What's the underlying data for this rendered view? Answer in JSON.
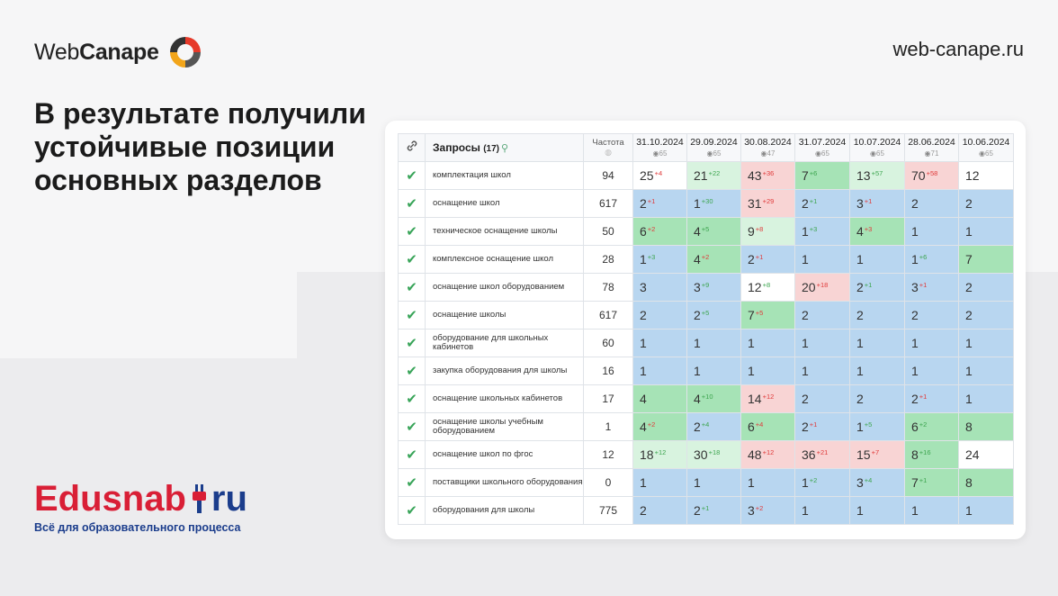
{
  "brand": {
    "name_light": "Web",
    "name_bold": "Canape",
    "site": "web-canape.ru"
  },
  "headline": "В результате получили устойчивые позиции основных разделов",
  "client": {
    "name_red": "Edusnab",
    "name_blue": "ru",
    "tagline": "Всё для образовательного процесса"
  },
  "table": {
    "header": {
      "queries_label": "Запросы",
      "queries_count": "(17)",
      "freq_label": "Частота",
      "dates": [
        {
          "date": "31.10.2024",
          "coverage": "65"
        },
        {
          "date": "29.09.2024",
          "coverage": "65"
        },
        {
          "date": "30.08.2024",
          "coverage": "47"
        },
        {
          "date": "31.07.2024",
          "coverage": "65"
        },
        {
          "date": "10.07.2024",
          "coverage": "65"
        },
        {
          "date": "28.06.2024",
          "coverage": "71"
        },
        {
          "date": "10.06.2024",
          "coverage": "65"
        }
      ]
    },
    "rows": [
      {
        "query": "комплектация школ",
        "freq": "94",
        "cells": [
          {
            "v": "25",
            "d": "+4",
            "dir": "dn",
            "c": "c-white"
          },
          {
            "v": "21",
            "d": "+22",
            "dir": "up",
            "c": "c-lgreen"
          },
          {
            "v": "43",
            "d": "+36",
            "dir": "dn",
            "c": "c-pink"
          },
          {
            "v": "7",
            "d": "+6",
            "dir": "up",
            "c": "c-green"
          },
          {
            "v": "13",
            "d": "+57",
            "dir": "up",
            "c": "c-lgreen"
          },
          {
            "v": "70",
            "d": "+58",
            "dir": "dn",
            "c": "c-pink"
          },
          {
            "v": "12",
            "d": "",
            "dir": "",
            "c": "c-white"
          }
        ]
      },
      {
        "query": "оснащение школ",
        "freq": "617",
        "cells": [
          {
            "v": "2",
            "d": "+1",
            "dir": "dn",
            "c": "c-blue"
          },
          {
            "v": "1",
            "d": "+30",
            "dir": "up",
            "c": "c-blue"
          },
          {
            "v": "31",
            "d": "+29",
            "dir": "dn",
            "c": "c-pink"
          },
          {
            "v": "2",
            "d": "+1",
            "dir": "up",
            "c": "c-blue"
          },
          {
            "v": "3",
            "d": "+1",
            "dir": "dn",
            "c": "c-blue"
          },
          {
            "v": "2",
            "d": "",
            "dir": "",
            "c": "c-blue"
          },
          {
            "v": "2",
            "d": "",
            "dir": "",
            "c": "c-blue"
          }
        ]
      },
      {
        "query": "техническое оснащение школы",
        "freq": "50",
        "cells": [
          {
            "v": "6",
            "d": "+2",
            "dir": "dn",
            "c": "c-green"
          },
          {
            "v": "4",
            "d": "+5",
            "dir": "up",
            "c": "c-green"
          },
          {
            "v": "9",
            "d": "+8",
            "dir": "dn",
            "c": "c-lgreen"
          },
          {
            "v": "1",
            "d": "+3",
            "dir": "up",
            "c": "c-blue"
          },
          {
            "v": "4",
            "d": "+3",
            "dir": "dn",
            "c": "c-green"
          },
          {
            "v": "1",
            "d": "",
            "dir": "",
            "c": "c-blue"
          },
          {
            "v": "1",
            "d": "",
            "dir": "",
            "c": "c-blue"
          }
        ]
      },
      {
        "query": "комплексное оснащение школ",
        "freq": "28",
        "cells": [
          {
            "v": "1",
            "d": "+3",
            "dir": "up",
            "c": "c-blue"
          },
          {
            "v": "4",
            "d": "+2",
            "dir": "dn",
            "c": "c-green"
          },
          {
            "v": "2",
            "d": "+1",
            "dir": "dn",
            "c": "c-blue"
          },
          {
            "v": "1",
            "d": "",
            "dir": "",
            "c": "c-blue"
          },
          {
            "v": "1",
            "d": "",
            "dir": "",
            "c": "c-blue"
          },
          {
            "v": "1",
            "d": "+6",
            "dir": "up",
            "c": "c-blue"
          },
          {
            "v": "7",
            "d": "",
            "dir": "",
            "c": "c-green"
          }
        ]
      },
      {
        "query": "оснащение школ оборудованием",
        "freq": "78",
        "cells": [
          {
            "v": "3",
            "d": "",
            "dir": "",
            "c": "c-blue"
          },
          {
            "v": "3",
            "d": "+9",
            "dir": "up",
            "c": "c-blue"
          },
          {
            "v": "12",
            "d": "+8",
            "dir": "up",
            "c": "c-white"
          },
          {
            "v": "20",
            "d": "+18",
            "dir": "dn",
            "c": "c-pink"
          },
          {
            "v": "2",
            "d": "+1",
            "dir": "up",
            "c": "c-blue"
          },
          {
            "v": "3",
            "d": "+1",
            "dir": "dn",
            "c": "c-blue"
          },
          {
            "v": "2",
            "d": "",
            "dir": "",
            "c": "c-blue"
          }
        ]
      },
      {
        "query": "оснащение школы",
        "freq": "617",
        "cells": [
          {
            "v": "2",
            "d": "",
            "dir": "",
            "c": "c-blue"
          },
          {
            "v": "2",
            "d": "+5",
            "dir": "up",
            "c": "c-blue"
          },
          {
            "v": "7",
            "d": "+5",
            "dir": "dn",
            "c": "c-green"
          },
          {
            "v": "2",
            "d": "",
            "dir": "",
            "c": "c-blue"
          },
          {
            "v": "2",
            "d": "",
            "dir": "",
            "c": "c-blue"
          },
          {
            "v": "2",
            "d": "",
            "dir": "",
            "c": "c-blue"
          },
          {
            "v": "2",
            "d": "",
            "dir": "",
            "c": "c-blue"
          }
        ]
      },
      {
        "query": "оборудование для школьных кабинетов",
        "freq": "60",
        "cells": [
          {
            "v": "1",
            "d": "",
            "dir": "",
            "c": "c-blue"
          },
          {
            "v": "1",
            "d": "",
            "dir": "",
            "c": "c-blue"
          },
          {
            "v": "1",
            "d": "",
            "dir": "",
            "c": "c-blue"
          },
          {
            "v": "1",
            "d": "",
            "dir": "",
            "c": "c-blue"
          },
          {
            "v": "1",
            "d": "",
            "dir": "",
            "c": "c-blue"
          },
          {
            "v": "1",
            "d": "",
            "dir": "",
            "c": "c-blue"
          },
          {
            "v": "1",
            "d": "",
            "dir": "",
            "c": "c-blue"
          }
        ]
      },
      {
        "query": "закупка оборудования для школы",
        "freq": "16",
        "cells": [
          {
            "v": "1",
            "d": "",
            "dir": "",
            "c": "c-blue"
          },
          {
            "v": "1",
            "d": "",
            "dir": "",
            "c": "c-blue"
          },
          {
            "v": "1",
            "d": "",
            "dir": "",
            "c": "c-blue"
          },
          {
            "v": "1",
            "d": "",
            "dir": "",
            "c": "c-blue"
          },
          {
            "v": "1",
            "d": "",
            "dir": "",
            "c": "c-blue"
          },
          {
            "v": "1",
            "d": "",
            "dir": "",
            "c": "c-blue"
          },
          {
            "v": "1",
            "d": "",
            "dir": "",
            "c": "c-blue"
          }
        ]
      },
      {
        "query": "оснащение школьных кабинетов",
        "freq": "17",
        "cells": [
          {
            "v": "4",
            "d": "",
            "dir": "",
            "c": "c-green"
          },
          {
            "v": "4",
            "d": "+10",
            "dir": "up",
            "c": "c-green"
          },
          {
            "v": "14",
            "d": "+12",
            "dir": "dn",
            "c": "c-pink"
          },
          {
            "v": "2",
            "d": "",
            "dir": "",
            "c": "c-blue"
          },
          {
            "v": "2",
            "d": "",
            "dir": "",
            "c": "c-blue"
          },
          {
            "v": "2",
            "d": "+1",
            "dir": "dn",
            "c": "c-blue"
          },
          {
            "v": "1",
            "d": "",
            "dir": "",
            "c": "c-blue"
          }
        ]
      },
      {
        "query": "оснащение школы учебным оборудованием",
        "freq": "1",
        "cells": [
          {
            "v": "4",
            "d": "+2",
            "dir": "dn",
            "c": "c-green"
          },
          {
            "v": "2",
            "d": "+4",
            "dir": "up",
            "c": "c-blue"
          },
          {
            "v": "6",
            "d": "+4",
            "dir": "dn",
            "c": "c-green"
          },
          {
            "v": "2",
            "d": "+1",
            "dir": "dn",
            "c": "c-blue"
          },
          {
            "v": "1",
            "d": "+5",
            "dir": "up",
            "c": "c-blue"
          },
          {
            "v": "6",
            "d": "+2",
            "dir": "up",
            "c": "c-green"
          },
          {
            "v": "8",
            "d": "",
            "dir": "",
            "c": "c-green"
          }
        ]
      },
      {
        "query": "оснащение школ по фгос",
        "freq": "12",
        "cells": [
          {
            "v": "18",
            "d": "+12",
            "dir": "up",
            "c": "c-lgreen"
          },
          {
            "v": "30",
            "d": "+18",
            "dir": "up",
            "c": "c-lgreen"
          },
          {
            "v": "48",
            "d": "+12",
            "dir": "dn",
            "c": "c-pink"
          },
          {
            "v": "36",
            "d": "+21",
            "dir": "dn",
            "c": "c-pink"
          },
          {
            "v": "15",
            "d": "+7",
            "dir": "dn",
            "c": "c-pink"
          },
          {
            "v": "8",
            "d": "+16",
            "dir": "up",
            "c": "c-green"
          },
          {
            "v": "24",
            "d": "",
            "dir": "",
            "c": "c-white"
          }
        ]
      },
      {
        "query": "поставщики школьного оборудования",
        "freq": "0",
        "cells": [
          {
            "v": "1",
            "d": "",
            "dir": "",
            "c": "c-blue"
          },
          {
            "v": "1",
            "d": "",
            "dir": "",
            "c": "c-blue"
          },
          {
            "v": "1",
            "d": "",
            "dir": "",
            "c": "c-blue"
          },
          {
            "v": "1",
            "d": "+2",
            "dir": "up",
            "c": "c-blue"
          },
          {
            "v": "3",
            "d": "+4",
            "dir": "up",
            "c": "c-blue"
          },
          {
            "v": "7",
            "d": "+1",
            "dir": "up",
            "c": "c-green"
          },
          {
            "v": "8",
            "d": "",
            "dir": "",
            "c": "c-green"
          }
        ]
      },
      {
        "query": "оборудования для школы",
        "freq": "775",
        "cells": [
          {
            "v": "2",
            "d": "",
            "dir": "",
            "c": "c-blue"
          },
          {
            "v": "2",
            "d": "+1",
            "dir": "up",
            "c": "c-blue"
          },
          {
            "v": "3",
            "d": "+2",
            "dir": "dn",
            "c": "c-blue"
          },
          {
            "v": "1",
            "d": "",
            "dir": "",
            "c": "c-blue"
          },
          {
            "v": "1",
            "d": "",
            "dir": "",
            "c": "c-blue"
          },
          {
            "v": "1",
            "d": "",
            "dir": "",
            "c": "c-blue"
          },
          {
            "v": "1",
            "d": "",
            "dir": "",
            "c": "c-blue"
          }
        ]
      }
    ]
  }
}
